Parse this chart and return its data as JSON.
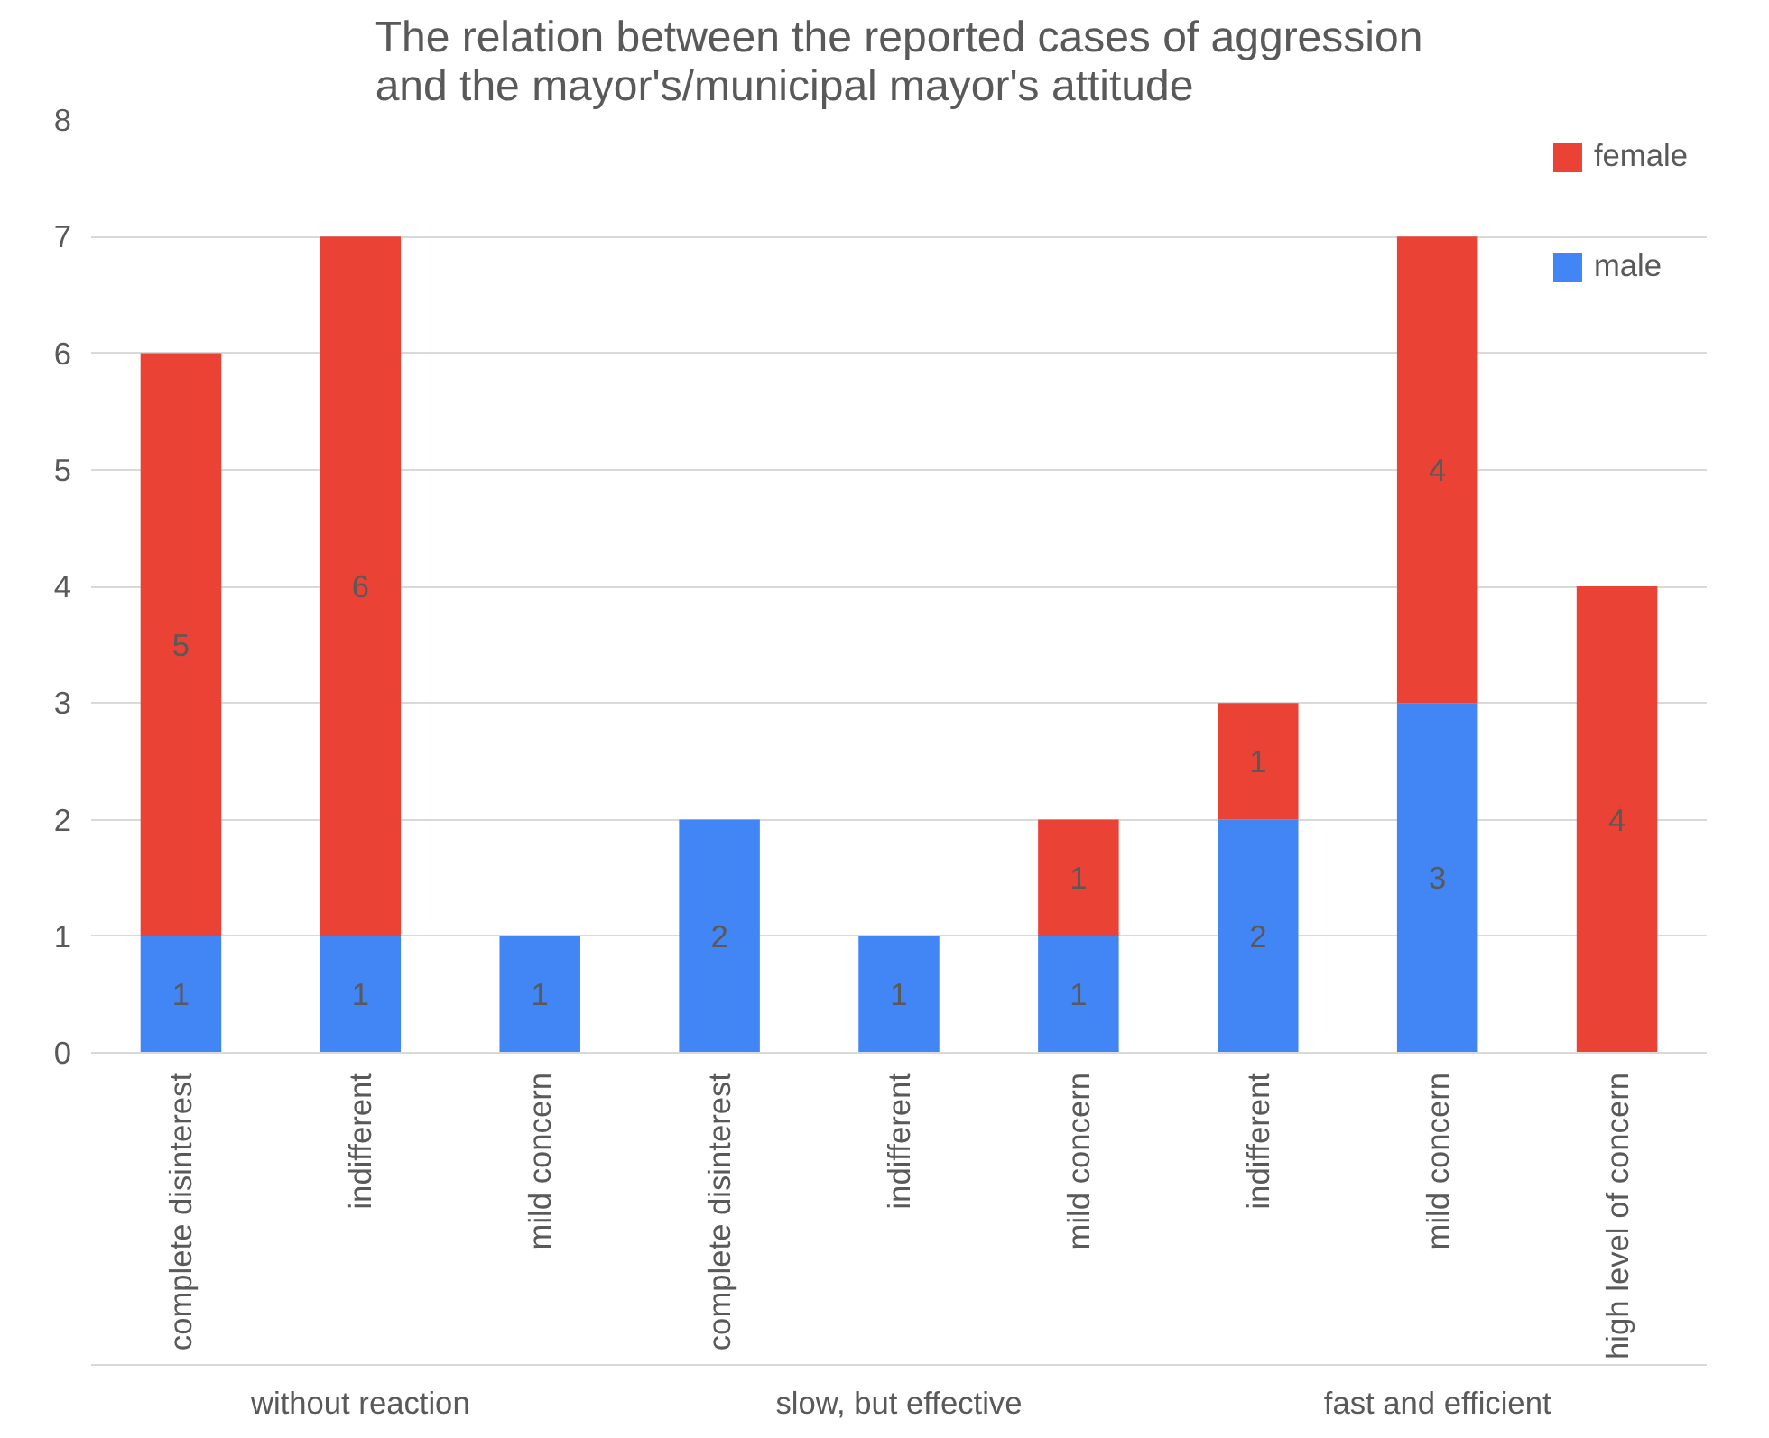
{
  "chart_data": {
    "type": "bar",
    "stacked": true,
    "title": "The relation between the reported cases of aggression\nand the mayor's/municipal mayor's attitude",
    "categories": [
      "complete disinterest",
      "indifferent",
      "mild concern",
      "complete disinterest",
      "indifferent",
      "mild concern",
      "indifferent",
      "mild concern",
      "high level of concern"
    ],
    "series": [
      {
        "name": "male",
        "color": "#4285f4",
        "values": [
          1,
          1,
          1,
          2,
          1,
          1,
          2,
          3,
          null
        ]
      },
      {
        "name": "female",
        "color": "#ea4335",
        "values": [
          5,
          6,
          null,
          null,
          null,
          1,
          1,
          4,
          4
        ]
      }
    ],
    "ylim": [
      0,
      8
    ],
    "yticks": [
      0,
      1,
      2,
      3,
      4,
      5,
      6,
      7,
      8
    ],
    "grid": "y",
    "legend": "top right",
    "data_labels": true,
    "annotations": [
      "without reaction",
      "slow, but effective",
      "fast and efficient"
    ]
  }
}
